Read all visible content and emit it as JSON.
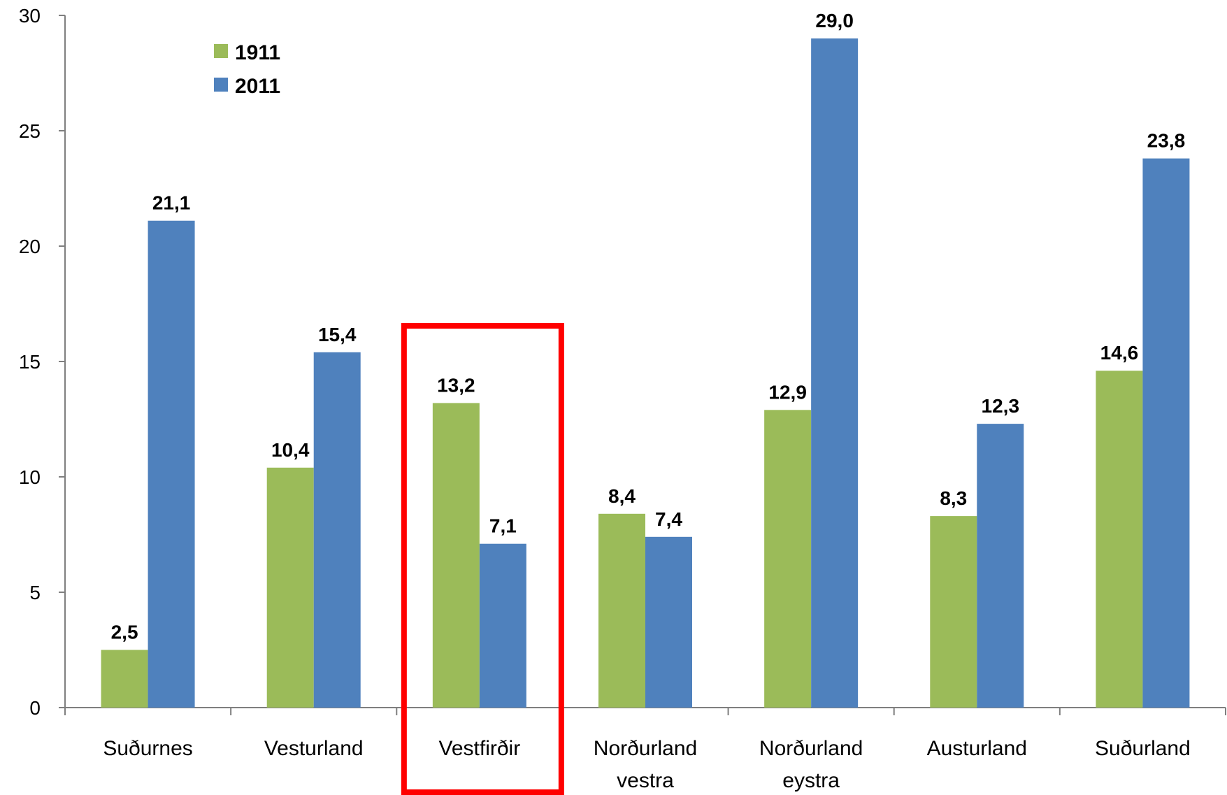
{
  "chart_data": {
    "type": "bar",
    "categories": [
      [
        "Suðurnes"
      ],
      [
        "Vesturland"
      ],
      [
        "Vestfirðir"
      ],
      [
        "Norðurland",
        "vestra"
      ],
      [
        "Norðurland",
        "eystra"
      ],
      [
        "Austurland"
      ],
      [
        "Suðurland"
      ]
    ],
    "series": [
      {
        "name": "1911",
        "color": "#9bbb59",
        "values": [
          2.5,
          10.4,
          13.2,
          8.4,
          12.9,
          8.3,
          14.6
        ],
        "labels": [
          "2,5",
          "10,4",
          "13,2",
          "8,4",
          "12,9",
          "8,3",
          "14,6"
        ]
      },
      {
        "name": "2011",
        "color": "#4f81bd",
        "values": [
          21.1,
          15.4,
          7.1,
          7.4,
          29.0,
          12.3,
          23.8
        ],
        "labels": [
          "21,1",
          "15,4",
          "7,1",
          "7,4",
          "29,0",
          "12,3",
          "23,8"
        ]
      }
    ],
    "yticks": [
      "0",
      "5",
      "10",
      "15",
      "20",
      "25",
      "30"
    ],
    "ylim": [
      0,
      30
    ],
    "grid": false,
    "legend_position": "top-left",
    "highlight": {
      "category_index": 2,
      "color": "#ff0000"
    },
    "axis_color": "#7f7f7f"
  }
}
